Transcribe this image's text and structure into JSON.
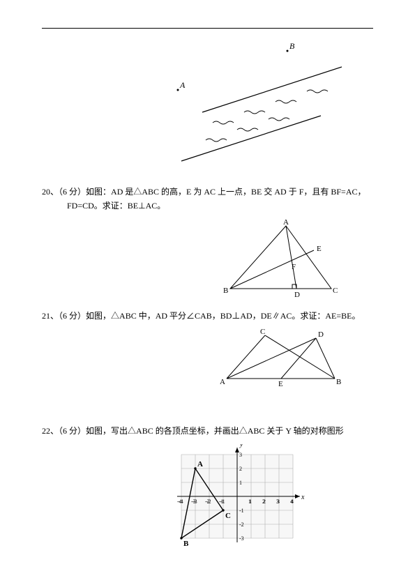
{
  "q20": {
    "num": "20、",
    "pts": "（6 分）",
    "text1": "如图：AD 是△ABC 的高，E 为 AC 上一点，BE 交 AD 于 F，且有 BF=AC，",
    "text2": "FD=CD。求证：BE⊥AC。",
    "labels": {
      "A": "A",
      "B": "B",
      "C": "C",
      "D": "D",
      "E": "E",
      "F": "F"
    }
  },
  "q21": {
    "num": "21、",
    "pts": "（6 分）",
    "text1": "如图，△ABC 中，AD 平分∠CAB，BD⊥AD，DE∥AC。求证：AE=BE。",
    "labels": {
      "A": "A",
      "B": "B",
      "C": "C",
      "D": "D",
      "E": "E"
    }
  },
  "q22": {
    "num": "22、",
    "pts": "（6 分）",
    "text1": "如图，写出△ABC 的各顶点坐标，并画出△ABC 关于 Y 轴的对称图形",
    "axes": {
      "x": "x",
      "y": "y"
    },
    "labels": {
      "A": "A",
      "B": "B",
      "C": "C"
    },
    "grid": {
      "xmin": -4,
      "xmax": 4,
      "ymin": -3,
      "ymax": 3,
      "xticks": [
        "-4",
        "-3",
        "-2",
        "-1",
        "1",
        "2",
        "3",
        "4"
      ],
      "yticks_pos": [
        "1",
        "2",
        "3"
      ],
      "yticks_neg": [
        "-1",
        "-2",
        "-3"
      ]
    },
    "points": {
      "A": [
        -3,
        2
      ],
      "B": [
        -4,
        -3
      ],
      "C": [
        -1,
        -1
      ]
    },
    "colors": {
      "grid": "#b0b0b0",
      "axis": "#000",
      "shape": "#000",
      "gridbg": "#f7f7f7"
    }
  },
  "fig19": {
    "labels": {
      "A": "A",
      "B": "B"
    }
  }
}
